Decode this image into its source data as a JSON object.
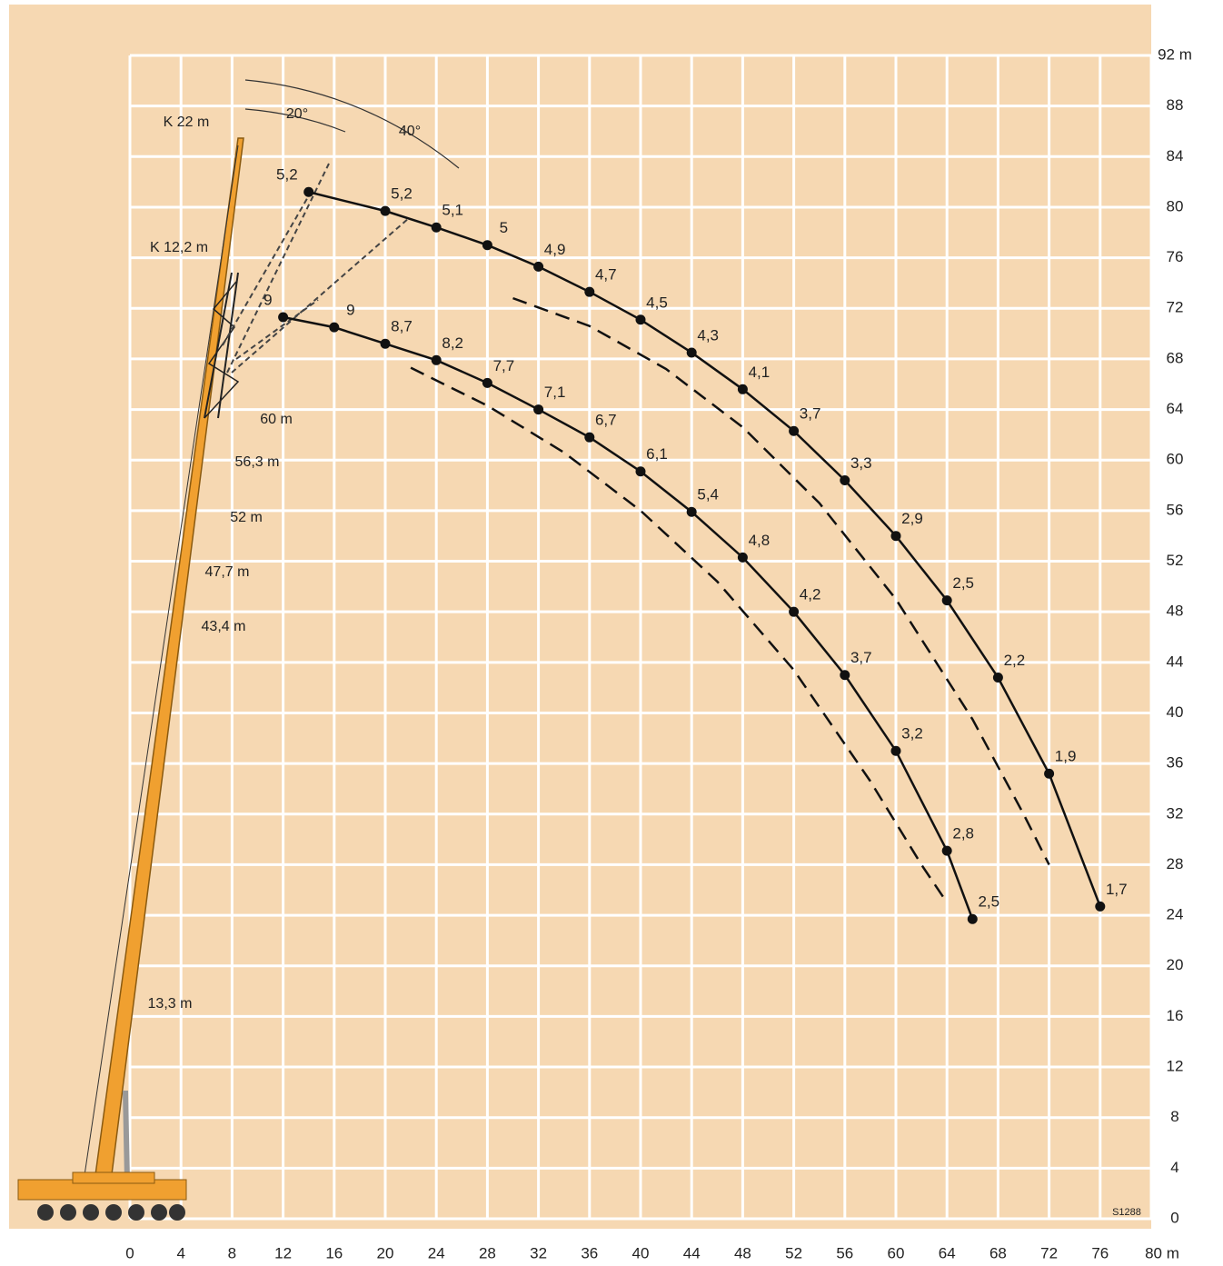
{
  "chart_data": {
    "type": "line",
    "xlim": [
      0,
      80
    ],
    "ylim": [
      0,
      92
    ],
    "xticks": [
      0,
      4,
      8,
      12,
      16,
      20,
      24,
      28,
      32,
      36,
      40,
      44,
      48,
      52,
      56,
      60,
      64,
      68,
      72,
      76,
      {
        "value": 80,
        "label": "80 m"
      }
    ],
    "yticks": [
      0,
      4,
      8,
      12,
      16,
      20,
      24,
      28,
      32,
      36,
      40,
      44,
      48,
      52,
      56,
      60,
      64,
      68,
      72,
      76,
      80,
      84,
      88,
      {
        "value": 92,
        "label": "92 m"
      }
    ],
    "grid": true,
    "series": [
      {
        "color": "#111111",
        "x": [
          14,
          20,
          24,
          28,
          32,
          36,
          40,
          44,
          48,
          52,
          56,
          60,
          64,
          68,
          72,
          76
        ],
        "values": [
          81.2,
          79.7,
          78.4,
          77.0,
          75.3,
          73.3,
          71.1,
          68.5,
          65.6,
          62.3,
          58.4,
          54.0,
          48.9,
          42.8,
          35.2,
          24.7
        ],
        "value_labels": [
          "5,2",
          "5,2",
          "5,1",
          "5",
          "4,9",
          "4,7",
          "4,5",
          "4,3",
          "4,1",
          "3,7",
          "3,3",
          "2,9",
          "2,5",
          "2,2",
          "1,9",
          "1,7"
        ]
      },
      {
        "color": "#111111",
        "x": [
          12,
          16,
          20,
          24,
          28,
          32,
          36,
          40,
          44,
          48,
          52,
          56,
          60,
          64,
          66
        ],
        "values": [
          71.3,
          70.5,
          69.2,
          67.9,
          66.1,
          64.0,
          61.8,
          59.1,
          55.9,
          52.3,
          48.0,
          43.0,
          37.0,
          29.1,
          23.7
        ],
        "value_labels": [
          "9",
          "9",
          "8,7",
          "8,2",
          "7,7",
          "7,1",
          "6,7",
          "6,1",
          "5,4",
          "4,8",
          "4,2",
          "3,7",
          "3,2",
          "2,8",
          "2,5"
        ]
      },
      {
        "color": "#111111",
        "dashed": true,
        "x": [
          30,
          36,
          42,
          48,
          54,
          60,
          66,
          70,
          72
        ],
        "values": [
          72.8,
          70.6,
          67.2,
          62.6,
          56.6,
          49.0,
          39.5,
          32.0,
          28.0
        ]
      },
      {
        "color": "#111111",
        "dashed": true,
        "x": [
          22,
          28,
          34,
          40,
          46,
          52,
          58,
          62,
          64
        ],
        "values": [
          67.3,
          64.3,
          60.6,
          56.0,
          50.4,
          43.4,
          34.6,
          28.0,
          25.0
        ]
      }
    ],
    "annotations": [
      "K 22 m",
      "K 12,2 m",
      "20°",
      "40°",
      "60 m",
      "56,3 m",
      "52 m",
      "47,7 m",
      "43,4 m",
      "13,3 m",
      "S1288"
    ]
  }
}
